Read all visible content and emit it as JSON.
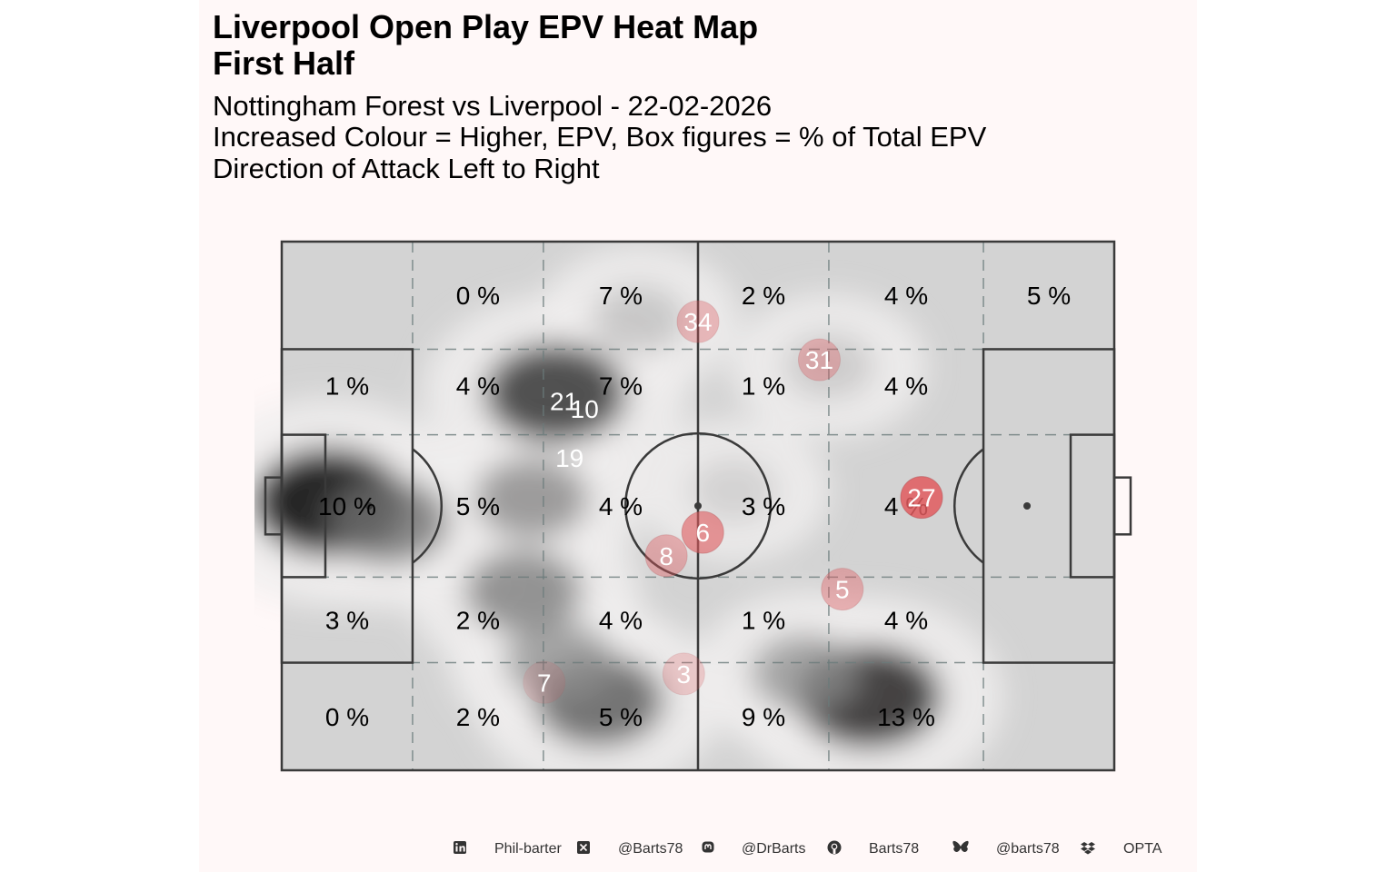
{
  "header": {
    "title_line1": "Liverpool  Open Play EPV Heat Map",
    "title_line2": "First Half",
    "subtitle_line1": "Nottingham Forest vs Liverpool - 22-02-2026",
    "subtitle_line2": "Increased Colour = Higher, EPV, Box figures = % of Total EPV",
    "subtitle_line3": "Direction of Attack Left to Right"
  },
  "chart_data": {
    "type": "heatmap",
    "pitch": {
      "length": 105,
      "width": 68,
      "attack_direction": "left-to-right"
    },
    "zones_columns": 6,
    "zones_rows": 5,
    "zone_percentages": [
      [
        "",
        "0 %",
        "7 %",
        "2 %",
        "4 %",
        "5 %"
      ],
      [
        "1 %",
        "4 %",
        "7 %",
        "1 %",
        "4 %",
        ""
      ],
      [
        "10 %",
        "5 %",
        "4 %",
        "3 %",
        "4 %",
        ""
      ],
      [
        "3 %",
        "2 %",
        "4 %",
        "1 %",
        "4 %",
        ""
      ],
      [
        "0 %",
        "2 %",
        "5 %",
        "9 %",
        "13 %",
        ""
      ]
    ],
    "players": [
      {
        "number": "34",
        "x": 52.5,
        "y": 57.7,
        "alpha": 0.35
      },
      {
        "number": "31",
        "x": 67.8,
        "y": 52.8,
        "alpha": 0.35
      },
      {
        "number": "21",
        "x": 35.6,
        "y": 47.5,
        "alpha": 0.0
      },
      {
        "number": "10",
        "x": 38.2,
        "y": 46.5,
        "alpha": 0.0
      },
      {
        "number": "19",
        "x": 36.3,
        "y": 40.2,
        "alpha": 0.0
      },
      {
        "number": "27",
        "x": 80.7,
        "y": 35.1,
        "alpha": 0.85
      },
      {
        "number": "6",
        "x": 53.1,
        "y": 30.6,
        "alpha": 0.6
      },
      {
        "number": "8",
        "x": 48.5,
        "y": 27.6,
        "alpha": 0.4
      },
      {
        "number": "5",
        "x": 70.7,
        "y": 23.3,
        "alpha": 0.4
      },
      {
        "number": "3",
        "x": 50.7,
        "y": 12.4,
        "alpha": 0.25
      },
      {
        "number": "7",
        "x": 33.1,
        "y": 11.3,
        "alpha": 0.15
      }
    ],
    "density_peaks": [
      {
        "x": 6.0,
        "y": 34.5,
        "intensity": 1.0
      },
      {
        "x": 13.5,
        "y": 32.0,
        "intensity": 0.6
      },
      {
        "x": 34.5,
        "y": 48.5,
        "intensity": 0.85
      },
      {
        "x": 31.5,
        "y": 35.0,
        "intensity": 0.5
      },
      {
        "x": 30.5,
        "y": 23.0,
        "intensity": 0.55
      },
      {
        "x": 40.0,
        "y": 9.0,
        "intensity": 0.7
      },
      {
        "x": 35.0,
        "y": 14.0,
        "intensity": 0.45
      },
      {
        "x": 74.0,
        "y": 9.5,
        "intensity": 0.9
      },
      {
        "x": 66.0,
        "y": 12.5,
        "intensity": 0.45
      },
      {
        "x": 45.0,
        "y": 58.0,
        "intensity": 0.25
      },
      {
        "x": 69.0,
        "y": 52.0,
        "intensity": 0.22
      },
      {
        "x": 57.0,
        "y": 36.0,
        "intensity": 0.18
      }
    ],
    "colors": {
      "pitch": "#d3d3d3",
      "lines": "#3a3a3a",
      "zone_grid": "#6b7b7b",
      "player_marker": "#e05a5e",
      "heat_dark": "#202020",
      "heat_light": "#f0eeee"
    }
  },
  "footer": {
    "items": [
      {
        "icon": "linkedin-icon",
        "label": "Phil-barter"
      },
      {
        "icon": "x-icon",
        "label": "@Barts78"
      },
      {
        "icon": "mastodon-icon",
        "label": "@DrBarts"
      },
      {
        "icon": "github-icon",
        "label": "Barts78"
      },
      {
        "icon": "bluesky-icon",
        "label": "@barts78"
      },
      {
        "icon": "dropbox-icon",
        "label": "OPTA"
      }
    ]
  }
}
